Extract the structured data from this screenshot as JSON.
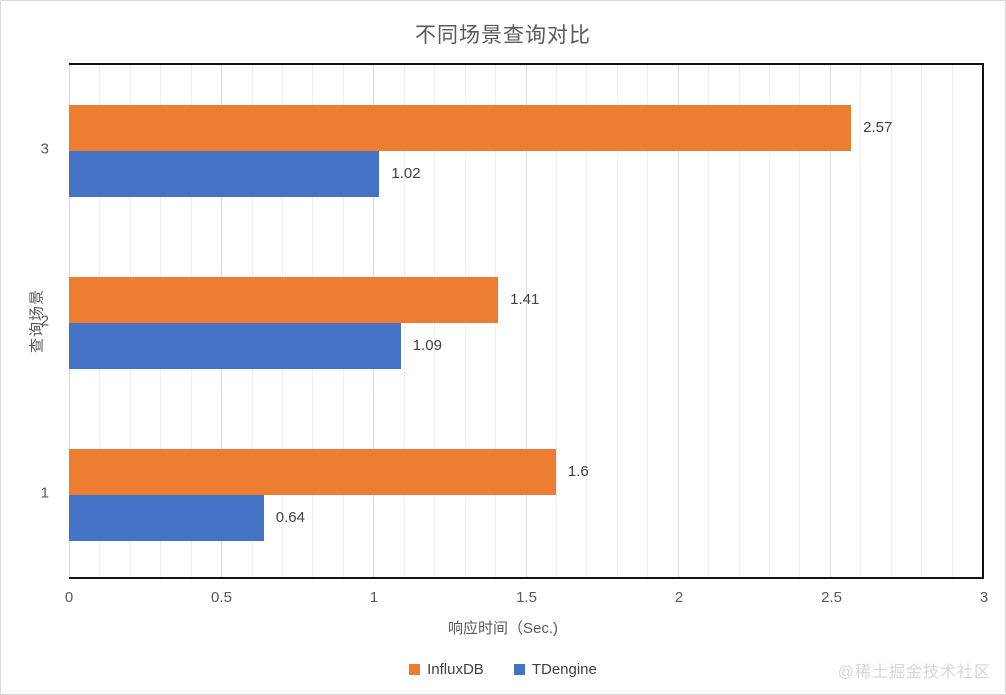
{
  "watermark": "@稀土掘金技术社区",
  "chart_data": {
    "type": "bar",
    "orientation": "horizontal",
    "title": "不同场景查询对比",
    "xlabel": "响应时间（Sec.)",
    "ylabel": "查询场景",
    "categories": [
      "3",
      "2",
      "1"
    ],
    "series": [
      {
        "name": "InfluxDB",
        "color": "#ED7D31",
        "values": [
          2.57,
          1.41,
          1.6
        ],
        "labels": [
          "2.57",
          "1.41",
          "1.6"
        ]
      },
      {
        "name": "TDengine",
        "color": "#4472C4",
        "values": [
          1.02,
          1.09,
          0.64
        ],
        "labels": [
          "1.02",
          "1.09",
          "0.64"
        ]
      }
    ],
    "xlim": [
      0,
      3
    ],
    "xticks": [
      0,
      0.5,
      1,
      1.5,
      2,
      2.5,
      3
    ],
    "xtick_labels": [
      "0",
      "0.5",
      "1",
      "1.5",
      "2",
      "2.5",
      "3"
    ],
    "minor_grid_step": 0.1,
    "major_grid_step": 0.5,
    "grid": true,
    "legend": [
      "InfluxDB",
      "TDengine"
    ],
    "legend_position": "bottom-center"
  }
}
